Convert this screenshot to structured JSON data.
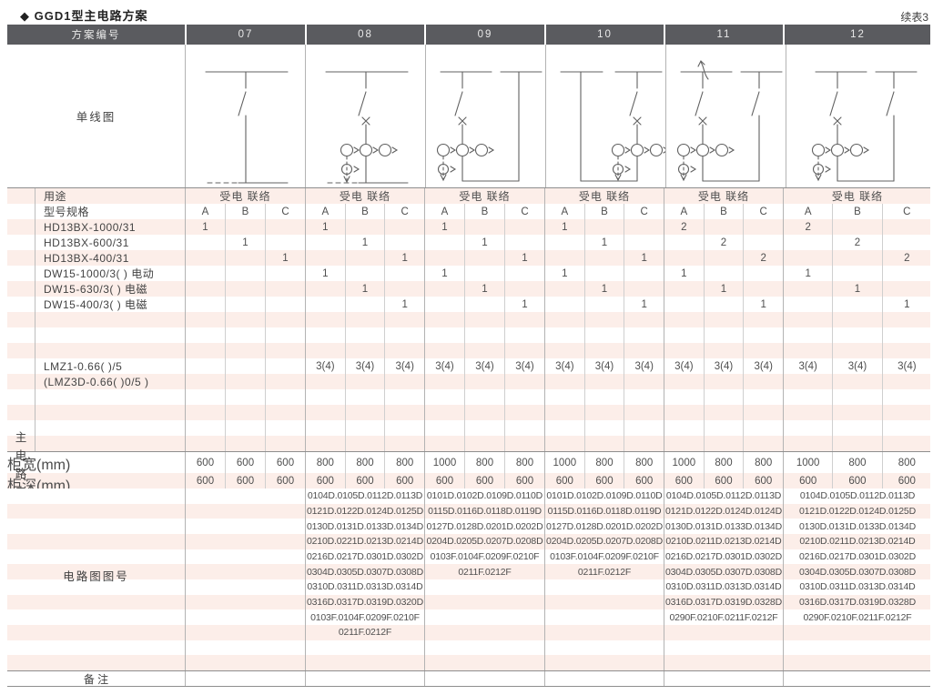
{
  "page_title": "◆ GGD1型主电路方案",
  "continuation_label": "续表3",
  "colors": {
    "header_bg": "#5a5b5f",
    "stripe_pink": "#fceee9",
    "major_border": "#8e8e8e",
    "scheme_border": "#b3b3b3"
  },
  "table": {
    "header": {
      "label_col": "方案编号",
      "schemes": [
        "07",
        "08",
        "09",
        "10",
        "11",
        "12"
      ]
    },
    "diagram_row_label": "单线图",
    "diagrams": [
      {
        "scheme": "07",
        "layout": "feeder",
        "switch": true,
        "breaker": false,
        "cts": false,
        "meter": false
      },
      {
        "scheme": "08",
        "layout": "feeder",
        "switch": true,
        "breaker": true,
        "cts": true,
        "meter": true
      },
      {
        "scheme": "09",
        "layout": "tie",
        "equipment_side": "left",
        "left_switch": true,
        "right_switch": false,
        "arrow": false
      },
      {
        "scheme": "10",
        "layout": "tie",
        "equipment_side": "right",
        "left_switch": false,
        "right_switch": true,
        "arrow": false
      },
      {
        "scheme": "11",
        "layout": "tie",
        "equipment_side": "left",
        "left_switch": true,
        "right_switch": true,
        "arrow": true
      },
      {
        "scheme": "12",
        "layout": "tie",
        "equipment_side": "left",
        "left_switch": true,
        "right_switch": true,
        "arrow": false
      }
    ],
    "usage_row": {
      "label": "用途",
      "value": "受电 联络"
    },
    "spec_header": {
      "label": "型号规格",
      "sub_cols": [
        "A",
        "B",
        "C"
      ]
    },
    "side_label": "主电路电器元件",
    "component_rows": [
      {
        "label": "HD13BX-1000/31",
        "cells": [
          "1",
          "",
          "",
          "1",
          "",
          "",
          "1",
          "",
          "",
          "1",
          "",
          "",
          "2",
          "",
          "",
          "2",
          "",
          ""
        ]
      },
      {
        "label": "HD13BX-600/31",
        "cells": [
          "",
          "1",
          "",
          "",
          "1",
          "",
          "",
          "1",
          "",
          "",
          "1",
          "",
          "",
          "2",
          "",
          "",
          "2",
          ""
        ]
      },
      {
        "label": "HD13BX-400/31",
        "cells": [
          "",
          "",
          "1",
          "",
          "",
          "1",
          "",
          "",
          "1",
          "",
          "",
          "1",
          "",
          "",
          "2",
          "",
          "",
          "2"
        ]
      },
      {
        "label": "DW15-1000/3( )  电动",
        "cells": [
          "",
          "",
          "",
          "1",
          "",
          "",
          "1",
          "",
          "",
          "1",
          "",
          "",
          "1",
          "",
          "",
          "1",
          "",
          ""
        ]
      },
      {
        "label": "DW15-630/3( )  电磁",
        "cells": [
          "",
          "",
          "",
          "",
          "1",
          "",
          "",
          "1",
          "",
          "",
          "1",
          "",
          "",
          "1",
          "",
          "",
          "1",
          ""
        ]
      },
      {
        "label": "DW15-400/3( )  电磁",
        "cells": [
          "",
          "",
          "",
          "",
          "",
          "1",
          "",
          "",
          "1",
          "",
          "",
          "1",
          "",
          "",
          "1",
          "",
          "",
          "1"
        ]
      },
      {
        "label": "",
        "cells": [
          "",
          "",
          "",
          "",
          "",
          "",
          "",
          "",
          "",
          "",
          "",
          "",
          "",
          "",
          "",
          "",
          "",
          ""
        ]
      },
      {
        "label": "",
        "cells": [
          "",
          "",
          "",
          "",
          "",
          "",
          "",
          "",
          "",
          "",
          "",
          "",
          "",
          "",
          "",
          "",
          "",
          ""
        ]
      },
      {
        "label": "",
        "cells": [
          "",
          "",
          "",
          "",
          "",
          "",
          "",
          "",
          "",
          "",
          "",
          "",
          "",
          "",
          "",
          "",
          "",
          ""
        ]
      },
      {
        "label": "LMZ1-0.66( )/5",
        "cells": [
          "",
          "",
          "",
          "3(4)",
          "3(4)",
          "3(4)",
          "3(4)",
          "3(4)",
          "3(4)",
          "3(4)",
          "3(4)",
          "3(4)",
          "3(4)",
          "3(4)",
          "3(4)",
          "3(4)",
          "3(4)",
          "3(4)"
        ]
      },
      {
        "label": "(LMZ3D-0.66( )0/5 )",
        "cells": [
          "",
          "",
          "",
          "",
          "",
          "",
          "",
          "",
          "",
          "",
          "",
          "",
          "",
          "",
          "",
          "",
          "",
          ""
        ]
      },
      {
        "label": "",
        "cells": [
          "",
          "",
          "",
          "",
          "",
          "",
          "",
          "",
          "",
          "",
          "",
          "",
          "",
          "",
          "",
          "",
          "",
          ""
        ]
      },
      {
        "label": "",
        "cells": [
          "",
          "",
          "",
          "",
          "",
          "",
          "",
          "",
          "",
          "",
          "",
          "",
          "",
          "",
          "",
          "",
          "",
          ""
        ]
      },
      {
        "label": "",
        "cells": [
          "",
          "",
          "",
          "",
          "",
          "",
          "",
          "",
          "",
          "",
          "",
          "",
          "",
          "",
          "",
          "",
          "",
          ""
        ]
      },
      {
        "label": "",
        "cells": [
          "",
          "",
          "",
          "",
          "",
          "",
          "",
          "",
          "",
          "",
          "",
          "",
          "",
          "",
          "",
          "",
          "",
          ""
        ]
      }
    ],
    "width_row": {
      "label": "柜宽(mm)",
      "cells": [
        "600",
        "600",
        "600",
        "800",
        "800",
        "800",
        "1000",
        "800",
        "800",
        "1000",
        "800",
        "800",
        "1000",
        "800",
        "800",
        "1000",
        "800",
        "800"
      ]
    },
    "depth_row": {
      "label": "柜深(mm)",
      "cells": [
        "600",
        "600",
        "600",
        "600",
        "600",
        "600",
        "600",
        "600",
        "600",
        "600",
        "600",
        "600",
        "600",
        "600",
        "600",
        "600",
        "600",
        "600"
      ]
    },
    "drawing_row": {
      "label": "电路图图号",
      "columns": [
        [],
        [
          "0104D.0105D.0112D.0113D",
          "0121D.0122D.0124D.0125D",
          "0130D.0131D.0133D.0134D",
          "0210D.0221D.0213D.0214D",
          "0216D.0217D.0301D.0302D",
          "0304D.0305D.0307D.0308D",
          "0310D.0311D.0313D.0314D",
          "0316D.0317D.0319D.0320D",
          "0103F.0104F.0209F.0210F",
          "0211F.0212F"
        ],
        [
          "0101D.0102D.0109D.0110D",
          "0115D.0116D.0118D.0119D",
          "0127D.0128D.0201D.0202D",
          "0204D.0205D.0207D.0208D",
          "0103F.0104F.0209F.0210F",
          "0211F.0212F"
        ],
        [
          "0101D.0102D.0109D.0110D",
          "0115D.0116D.0118D.0119D",
          "0127D.0128D.0201D.0202D",
          "0204D.0205D.0207D.0208D",
          "0103F.0104F.0209F.0210F",
          "0211F.0212F"
        ],
        [
          "0104D.0105D.0112D.0113D",
          "0121D.0122D.0124D.0124D",
          "0130D.0131D.0133D.0134D",
          "0210D.0211D.0213D.0214D",
          "0216D.0217D.0301D.0302D",
          "0304D.0305D.0307D.0308D",
          "0310D.0311D.0313D.0314D",
          "0316D.0317D.0319D.0328D",
          "0290F.0210F.0211F.0212F"
        ],
        [
          "0104D.0105D.0112D.0113D",
          "0121D.0122D.0124D.0125D",
          "0130D.0131D.0133D.0134D",
          "0210D.0211D.0213D.0214D",
          "0216D.0217D.0301D.0302D",
          "0304D.0305D.0307D.0308D",
          "0310D.0311D.0313D.0314D",
          "0316D.0317D.0319D.0328D",
          "0290F.0210F.0211F.0212F"
        ]
      ]
    },
    "remarks_row": {
      "label": "备 注"
    }
  }
}
